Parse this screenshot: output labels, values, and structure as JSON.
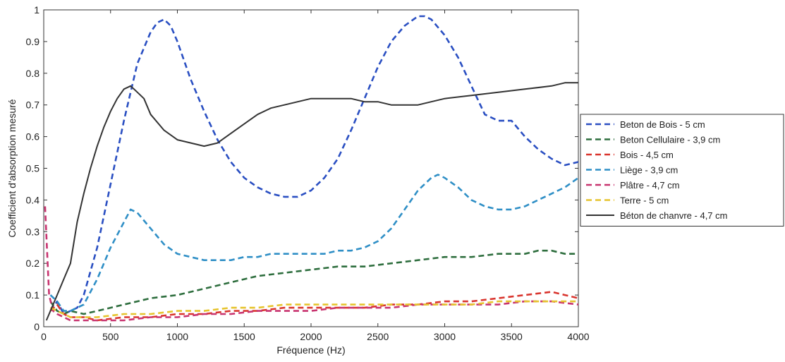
{
  "chart_data": {
    "type": "line",
    "title": "",
    "xlabel": "Fréquence (Hz)",
    "ylabel": "Coefficient d'absorption mesuré",
    "xlim": [
      0,
      4000
    ],
    "ylim": [
      0,
      1
    ],
    "xticks": [
      0,
      500,
      1000,
      1500,
      2000,
      2500,
      3000,
      3500,
      4000
    ],
    "yticks": [
      0,
      0.1,
      0.2,
      0.3,
      0.4,
      0.5,
      0.6,
      0.7,
      0.8,
      0.9,
      1
    ],
    "ytick_labels": [
      "0",
      "0.1",
      "0.2",
      "0.3",
      "0.4",
      "0.5",
      "0.6",
      "0.7",
      "0.8",
      "0.9",
      "1"
    ],
    "grid": false,
    "legend_position": "outside-right",
    "series": [
      {
        "name": "Beton de Bois - 5 cm",
        "color": "#2a4fc2",
        "style": "dashed",
        "x": [
          50,
          100,
          150,
          200,
          250,
          300,
          400,
          500,
          600,
          700,
          800,
          850,
          900,
          950,
          1000,
          1100,
          1200,
          1300,
          1400,
          1500,
          1600,
          1700,
          1800,
          1900,
          2000,
          2100,
          2200,
          2300,
          2400,
          2500,
          2600,
          2700,
          2800,
          2850,
          2900,
          3000,
          3100,
          3200,
          3300,
          3400,
          3500,
          3600,
          3700,
          3800,
          3900,
          4000
        ],
        "y": [
          0.05,
          0.08,
          0.04,
          0.05,
          0.06,
          0.1,
          0.25,
          0.45,
          0.65,
          0.83,
          0.93,
          0.96,
          0.97,
          0.95,
          0.9,
          0.78,
          0.68,
          0.59,
          0.52,
          0.47,
          0.44,
          0.42,
          0.41,
          0.41,
          0.43,
          0.47,
          0.53,
          0.62,
          0.72,
          0.82,
          0.9,
          0.95,
          0.98,
          0.98,
          0.97,
          0.92,
          0.85,
          0.76,
          0.67,
          0.65,
          0.65,
          0.6,
          0.56,
          0.53,
          0.51,
          0.52
        ]
      },
      {
        "name": "Beton Cellulaire - 3,9 cm",
        "color": "#2e6e3e",
        "style": "dashed",
        "x": [
          50,
          100,
          150,
          200,
          300,
          400,
          500,
          600,
          700,
          800,
          1000,
          1200,
          1400,
          1600,
          1800,
          2000,
          2200,
          2400,
          2600,
          2800,
          3000,
          3200,
          3400,
          3600,
          3700,
          3800,
          3900,
          4000
        ],
        "y": [
          0.08,
          0.05,
          0.04,
          0.05,
          0.04,
          0.05,
          0.06,
          0.07,
          0.08,
          0.09,
          0.1,
          0.12,
          0.14,
          0.16,
          0.17,
          0.18,
          0.19,
          0.19,
          0.2,
          0.21,
          0.22,
          0.22,
          0.23,
          0.23,
          0.24,
          0.24,
          0.23,
          0.23
        ]
      },
      {
        "name": "Bois - 4,5 cm",
        "color": "#d9352e",
        "style": "dashed",
        "x": [
          50,
          100,
          150,
          200,
          300,
          400,
          600,
          800,
          1000,
          1200,
          1400,
          1600,
          1800,
          2000,
          2200,
          2400,
          2600,
          2800,
          3000,
          3200,
          3400,
          3600,
          3800,
          3900,
          4000
        ],
        "y": [
          0.05,
          0.07,
          0.04,
          0.03,
          0.03,
          0.02,
          0.03,
          0.03,
          0.04,
          0.04,
          0.05,
          0.05,
          0.06,
          0.06,
          0.06,
          0.06,
          0.07,
          0.07,
          0.08,
          0.08,
          0.09,
          0.1,
          0.11,
          0.1,
          0.09
        ]
      },
      {
        "name": "Liège - 3,9 cm",
        "color": "#2f8fc6",
        "style": "dashed",
        "x": [
          50,
          100,
          150,
          200,
          300,
          400,
          500,
          600,
          650,
          700,
          800,
          900,
          1000,
          1100,
          1200,
          1300,
          1400,
          1500,
          1600,
          1700,
          1800,
          1900,
          2000,
          2100,
          2200,
          2300,
          2400,
          2500,
          2600,
          2700,
          2800,
          2900,
          2950,
          3000,
          3100,
          3200,
          3300,
          3400,
          3500,
          3600,
          3700,
          3800,
          3900,
          4000
        ],
        "y": [
          0.1,
          0.08,
          0.05,
          0.05,
          0.07,
          0.15,
          0.25,
          0.33,
          0.37,
          0.36,
          0.31,
          0.26,
          0.23,
          0.22,
          0.21,
          0.21,
          0.21,
          0.22,
          0.22,
          0.23,
          0.23,
          0.23,
          0.23,
          0.23,
          0.24,
          0.24,
          0.25,
          0.27,
          0.31,
          0.37,
          0.43,
          0.47,
          0.48,
          0.47,
          0.44,
          0.4,
          0.38,
          0.37,
          0.37,
          0.38,
          0.4,
          0.42,
          0.44,
          0.47
        ]
      },
      {
        "name": "Plâtre - 4,7 cm",
        "color": "#c8336f",
        "style": "dashed",
        "x": [
          10,
          40,
          70,
          100,
          150,
          200,
          300,
          400,
          600,
          800,
          1000,
          1200,
          1400,
          1600,
          1800,
          2000,
          2200,
          2400,
          2600,
          2800,
          3000,
          3200,
          3400,
          3600,
          3800,
          4000
        ],
        "y": [
          0.38,
          0.1,
          0.05,
          0.04,
          0.03,
          0.02,
          0.02,
          0.02,
          0.02,
          0.03,
          0.03,
          0.04,
          0.04,
          0.05,
          0.05,
          0.05,
          0.06,
          0.06,
          0.06,
          0.07,
          0.07,
          0.07,
          0.07,
          0.08,
          0.08,
          0.07
        ]
      },
      {
        "name": "Terre - 5 cm",
        "color": "#e6c42e",
        "style": "dashed",
        "x": [
          50,
          100,
          150,
          200,
          300,
          400,
          600,
          800,
          1000,
          1200,
          1400,
          1600,
          1800,
          2000,
          2200,
          2400,
          2600,
          2800,
          3000,
          3200,
          3400,
          3600,
          3800,
          4000
        ],
        "y": [
          0.06,
          0.05,
          0.04,
          0.03,
          0.03,
          0.03,
          0.04,
          0.04,
          0.05,
          0.05,
          0.06,
          0.06,
          0.07,
          0.07,
          0.07,
          0.07,
          0.07,
          0.07,
          0.07,
          0.07,
          0.08,
          0.08,
          0.08,
          0.08
        ]
      },
      {
        "name": "Béton de chanvre - 4,7 cm",
        "color": "#333333",
        "style": "solid",
        "x": [
          20,
          60,
          100,
          150,
          200,
          250,
          300,
          350,
          400,
          450,
          500,
          550,
          600,
          650,
          700,
          750,
          800,
          900,
          1000,
          1100,
          1200,
          1300,
          1400,
          1500,
          1600,
          1700,
          1800,
          1900,
          2000,
          2100,
          2200,
          2300,
          2400,
          2500,
          2600,
          2700,
          2800,
          2900,
          3000,
          3200,
          3400,
          3600,
          3800,
          3900,
          4000
        ],
        "y": [
          0.02,
          0.06,
          0.1,
          0.15,
          0.2,
          0.33,
          0.42,
          0.5,
          0.57,
          0.63,
          0.68,
          0.72,
          0.75,
          0.76,
          0.74,
          0.72,
          0.67,
          0.62,
          0.59,
          0.58,
          0.57,
          0.58,
          0.61,
          0.64,
          0.67,
          0.69,
          0.7,
          0.71,
          0.72,
          0.72,
          0.72,
          0.72,
          0.71,
          0.71,
          0.7,
          0.7,
          0.7,
          0.71,
          0.72,
          0.73,
          0.74,
          0.75,
          0.76,
          0.77,
          0.77
        ]
      }
    ]
  }
}
